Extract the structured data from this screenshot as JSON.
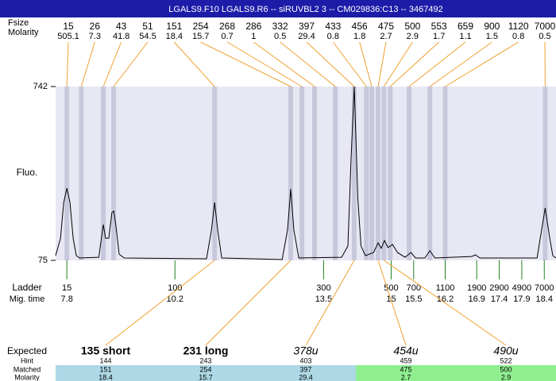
{
  "header": {
    "title": "LGALS9.F10  LGALS9.R6 -- siRUVBL2 3 -- CM029836:C13 -- 3467492",
    "fsize_label": "Fsize",
    "molarity_label": "Molarity"
  },
  "chart_data": {
    "type": "electropherogram",
    "y_label": "Fluo.",
    "ylim": [
      75,
      742
    ],
    "yticks": [
      75,
      742
    ],
    "xlim": [
      7.55,
      18.66
    ],
    "trace": {
      "color": "#000000",
      "x": [
        7.55,
        7.66,
        7.73,
        7.8,
        7.87,
        7.94,
        8.01,
        8.08,
        8.51,
        8.58,
        8.61,
        8.66,
        8.73,
        8.8,
        8.84,
        8.89,
        8.96,
        9.07,
        10.9,
        11.01,
        11.08,
        11.15,
        11.24,
        12.58,
        12.7,
        12.77,
        12.84,
        12.95,
        13.9,
        14.04,
        14.11,
        14.18,
        14.26,
        14.33,
        14.43,
        14.61,
        14.71,
        14.78,
        14.85,
        14.93,
        15.03,
        15.14,
        15.31,
        15.44,
        15.54,
        15.75,
        15.86,
        15.97,
        16.79,
        16.87,
        16.97,
        18.24,
        18.31,
        18.42,
        18.52,
        18.59,
        18.66
      ],
      "values": [
        93,
        160,
        297,
        352,
        297,
        160,
        93,
        84,
        87,
        176,
        212,
        160,
        160,
        258,
        264,
        206,
        99,
        84,
        81,
        191,
        297,
        191,
        84,
        78,
        191,
        349,
        191,
        84,
        87,
        130,
        465,
        742,
        313,
        130,
        93,
        105,
        142,
        121,
        151,
        124,
        136,
        105,
        87,
        105,
        84,
        84,
        112,
        84,
        90,
        96,
        84,
        84,
        160,
        276,
        160,
        93,
        84
      ]
    },
    "peaks": {
      "band_color": "#c8c8dc",
      "line_color": "#f0a030",
      "fsize": [
        15,
        26,
        43,
        51,
        151,
        254,
        268,
        286,
        332,
        397,
        433,
        456,
        475,
        500,
        553,
        659,
        900,
        1120,
        7000
      ],
      "molarity": [
        505.1,
        7.3,
        41.8,
        54.5,
        18.4,
        15.7,
        0.7,
        1,
        0.5,
        29.4,
        0.8,
        1.8,
        2.7,
        2.9,
        1.7,
        1.1,
        1.5,
        0.8,
        0.5
      ],
      "x": [
        7.8,
        8.12,
        8.61,
        8.84,
        11.08,
        12.77,
        13.02,
        13.3,
        13.76,
        14.18,
        14.45,
        14.57,
        14.71,
        14.84,
        14.98,
        15.4,
        15.86,
        16.2,
        18.42
      ]
    },
    "ladder": {
      "label": "Ladder",
      "time_label": "Mig. time",
      "color": "#208020",
      "sizes": [
        15,
        100,
        300,
        500,
        700,
        1100,
        1900,
        2900,
        4900,
        7000
      ],
      "x": [
        7.8,
        10.2,
        13.5,
        15,
        15.5,
        16.2,
        16.9,
        17.4,
        17.9,
        18.4
      ]
    }
  },
  "expected": {
    "labels": {
      "expected": "Expected",
      "hint": "Hint",
      "matched": "Matched",
      "molarity": "Molarity"
    },
    "columns": [
      {
        "name": "135 short",
        "hint": 144,
        "matched": 151,
        "molarity": 18.4,
        "color": "#add8e6",
        "style": "bold"
      },
      {
        "name": "231 long",
        "hint": 243,
        "matched": 254,
        "molarity": 15.7,
        "color": "#add8e6",
        "style": "bold"
      },
      {
        "name": "378u",
        "hint": 403,
        "matched": 397,
        "molarity": 29.4,
        "color": "#add8e6",
        "style": "italic"
      },
      {
        "name": "454u",
        "hint": 459,
        "matched": 475,
        "molarity": 2.7,
        "color": "#90ee90",
        "style": "italic"
      },
      {
        "name": "490u",
        "hint": 522,
        "matched": 500,
        "molarity": 2.9,
        "color": "#90ee90",
        "style": "italic"
      }
    ]
  }
}
